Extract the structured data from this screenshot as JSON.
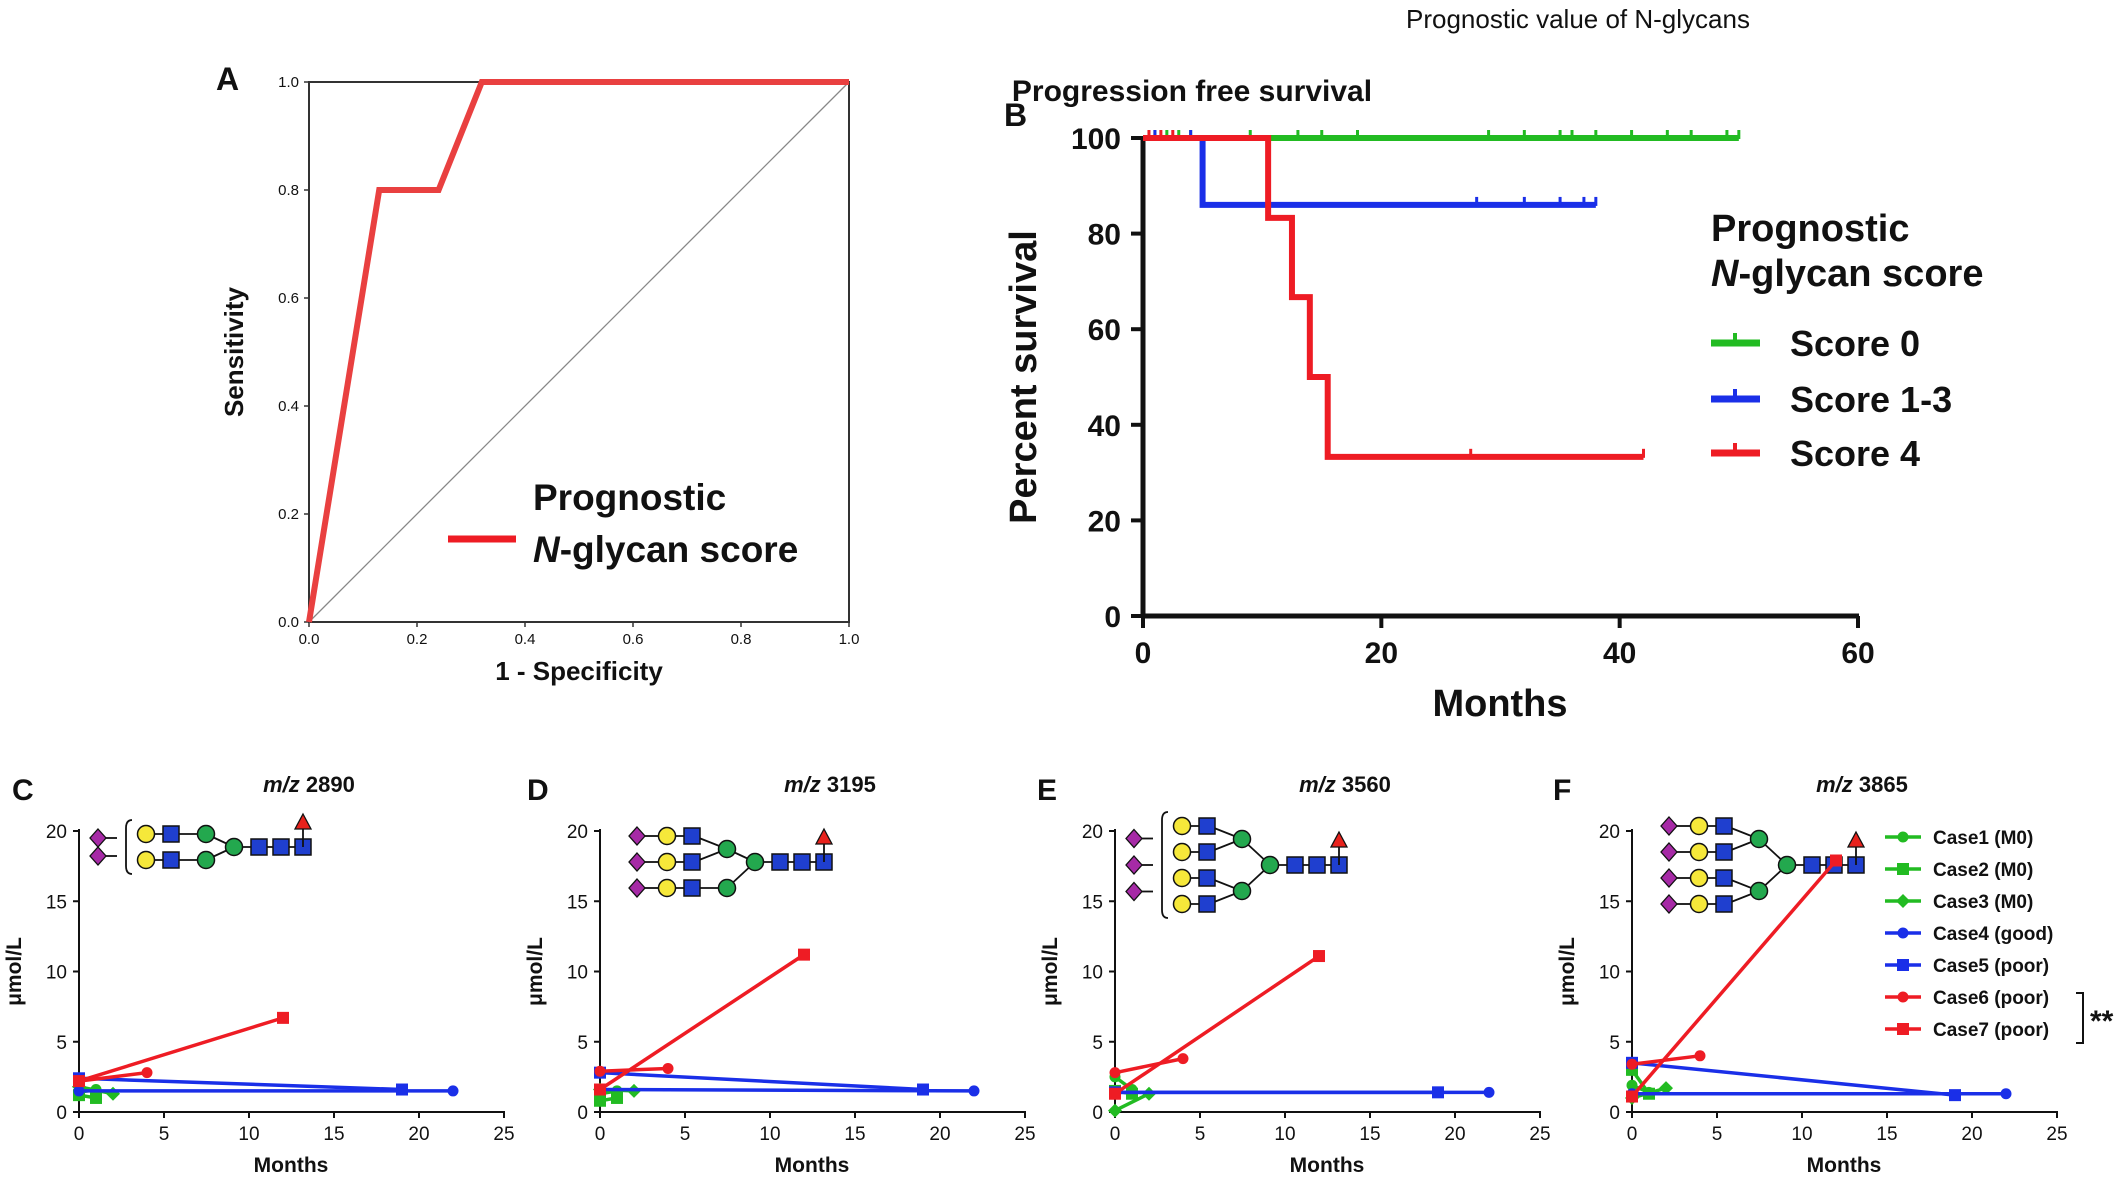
{
  "figure_title": "Prognostic value of N-glycans",
  "colors": {
    "red": "#ee1c24",
    "green": "#22bb22",
    "blue": "#1a2fe8",
    "roc_red": "#e94040",
    "glycan_yellow": "#f6e83a",
    "glycan_green": "#23a84e",
    "glycan_blue": "#1f3fcf",
    "glycan_purple": "#a62aa6",
    "fucose_red": "#e8221c"
  },
  "chart_data": [
    {
      "panel": "A",
      "type": "line",
      "title": "",
      "xlabel": "1 - Specificity",
      "ylabel": "Sensitivity",
      "xlim": [
        0,
        1
      ],
      "ylim": [
        0,
        1
      ],
      "xticks": [
        "0.0",
        "0.2",
        "0.4",
        "0.6",
        "0.8",
        "1.0"
      ],
      "yticks": [
        "0.0",
        "0.2",
        "0.4",
        "0.6",
        "0.8",
        "1.0"
      ],
      "legend": {
        "line1": "Prognostic",
        "line2_italic": "N",
        "line2_rest": "-glycan score"
      },
      "series": [
        {
          "name": "Prognostic N-glycan score",
          "x": [
            0,
            0.13,
            0.24,
            0.32,
            1.0
          ],
          "y": [
            0,
            0.8,
            0.8,
            1.0,
            1.0
          ]
        }
      ],
      "reference_line": {
        "x": [
          0,
          1
        ],
        "y": [
          0,
          1
        ]
      }
    },
    {
      "panel": "B",
      "type": "line",
      "title": "Progression free survival",
      "xlabel": "Months",
      "ylabel": "Percent survival",
      "xlim": [
        0,
        60
      ],
      "ylim": [
        0,
        100
      ],
      "xticks": [
        "0",
        "20",
        "40",
        "60"
      ],
      "yticks": [
        "0",
        "20",
        "40",
        "60",
        "80",
        "100"
      ],
      "legend_title_line1": "Prognostic",
      "legend_title_italic": "N",
      "legend_title_rest": "-glycan score",
      "series": [
        {
          "name": "Score 0",
          "color": "green",
          "steps": [
            [
              0,
              100
            ],
            [
              50,
              100
            ]
          ],
          "censor": [
            1,
            2,
            3,
            4,
            9,
            13,
            15,
            18,
            29,
            32,
            35,
            36,
            38,
            41,
            44,
            46,
            49,
            50
          ]
        },
        {
          "name": "Score 1-3",
          "color": "blue",
          "steps": [
            [
              0,
              100
            ],
            [
              5,
              100
            ],
            [
              5,
              86
            ],
            [
              38,
              86
            ]
          ],
          "censor": [
            1,
            4,
            28,
            32,
            35,
            37,
            38
          ]
        },
        {
          "name": "Score 4",
          "color": "red",
          "steps": [
            [
              0,
              100
            ],
            [
              10.5,
              100
            ],
            [
              10.5,
              83.3
            ],
            [
              12.5,
              83.3
            ],
            [
              12.5,
              66.7
            ],
            [
              14,
              66.7
            ],
            [
              14,
              50
            ],
            [
              15.5,
              50
            ],
            [
              15.5,
              33.3
            ],
            [
              42,
              33.3
            ]
          ],
          "censor": [
            0.5,
            1.5,
            2.5,
            27.5,
            42
          ]
        }
      ]
    }
  ],
  "small_panels": {
    "xlabel": "Months",
    "ylabel": "μmol/L",
    "xticks": [
      "0",
      "5",
      "10",
      "15",
      "20",
      "25"
    ],
    "yticks": [
      "0",
      "5",
      "10",
      "15",
      "20"
    ],
    "xlim": [
      0,
      25
    ],
    "ylim": [
      0,
      20
    ],
    "legend": [
      {
        "name": "Case1 (M0)",
        "color": "green",
        "marker": "circle"
      },
      {
        "name": "Case2 (M0)",
        "color": "green",
        "marker": "square"
      },
      {
        "name": "Case3 (M0)",
        "color": "green",
        "marker": "diamond"
      },
      {
        "name": "Case4 (good)",
        "color": "blue",
        "marker": "circle"
      },
      {
        "name": "Case5 (poor)",
        "color": "blue",
        "marker": "square"
      },
      {
        "name": "Case6 (poor)",
        "color": "red",
        "marker": "circle"
      },
      {
        "name": "Case7 (poor)",
        "color": "red",
        "marker": "square"
      }
    ],
    "significance": "**",
    "panels": [
      {
        "panel": "C",
        "title_italic": "m/z",
        "title_rest": " 2890",
        "series": [
          {
            "case": 1,
            "x": [
              0,
              1
            ],
            "y": [
              1.4,
              1.6
            ]
          },
          {
            "case": 2,
            "x": [
              0,
              1
            ],
            "y": [
              1.2,
              1.0
            ]
          },
          {
            "case": 3,
            "x": [
              0,
              2
            ],
            "y": [
              1.8,
              1.3
            ]
          },
          {
            "case": 4,
            "x": [
              0,
              22
            ],
            "y": [
              1.5,
              1.5
            ]
          },
          {
            "case": 5,
            "x": [
              0,
              19
            ],
            "y": [
              2.4,
              1.6
            ]
          },
          {
            "case": 6,
            "x": [
              0,
              4
            ],
            "y": [
              2.2,
              2.8
            ]
          },
          {
            "case": 7,
            "x": [
              0,
              12
            ],
            "y": [
              2.2,
              6.7
            ]
          }
        ]
      },
      {
        "panel": "D",
        "title_italic": "m/z",
        "title_rest": " 3195",
        "series": [
          {
            "case": 1,
            "x": [
              0,
              1
            ],
            "y": [
              1.3,
              1.5
            ]
          },
          {
            "case": 2,
            "x": [
              0,
              1
            ],
            "y": [
              0.8,
              1.0
            ]
          },
          {
            "case": 3,
            "x": [
              0,
              2
            ],
            "y": [
              1.6,
              1.5
            ]
          },
          {
            "case": 4,
            "x": [
              0,
              22
            ],
            "y": [
              1.6,
              1.5
            ]
          },
          {
            "case": 5,
            "x": [
              0,
              19
            ],
            "y": [
              2.8,
              1.6
            ]
          },
          {
            "case": 6,
            "x": [
              0,
              4
            ],
            "y": [
              2.9,
              3.1
            ]
          },
          {
            "case": 7,
            "x": [
              0,
              12
            ],
            "y": [
              1.6,
              11.2
            ]
          }
        ]
      },
      {
        "panel": "E",
        "title_italic": "m/z",
        "title_rest": " 3560",
        "series": [
          {
            "case": 1,
            "x": [
              0,
              1
            ],
            "y": [
              2.5,
              1.6
            ]
          },
          {
            "case": 2,
            "x": [
              0,
              1
            ],
            "y": [
              1.5,
              1.3
            ]
          },
          {
            "case": 3,
            "x": [
              0,
              2
            ],
            "y": [
              0.1,
              1.3
            ]
          },
          {
            "case": 4,
            "x": [
              0,
              22
            ],
            "y": [
              1.4,
              1.4
            ]
          },
          {
            "case": 5,
            "x": [
              0,
              19
            ],
            "y": [
              1.4,
              1.4
            ]
          },
          {
            "case": 6,
            "x": [
              0,
              4
            ],
            "y": [
              2.8,
              3.8
            ]
          },
          {
            "case": 7,
            "x": [
              0,
              12
            ],
            "y": [
              1.3,
              11.1
            ]
          }
        ]
      },
      {
        "panel": "F",
        "title_italic": "m/z",
        "title_rest": " 3865",
        "series": [
          {
            "case": 1,
            "x": [
              0,
              1
            ],
            "y": [
              1.9,
              1.4
            ]
          },
          {
            "case": 2,
            "x": [
              0,
              1
            ],
            "y": [
              3.0,
              1.3
            ]
          },
          {
            "case": 3,
            "x": [
              0,
              2
            ],
            "y": [
              1.0,
              1.7
            ]
          },
          {
            "case": 4,
            "x": [
              0,
              22
            ],
            "y": [
              1.3,
              1.3
            ]
          },
          {
            "case": 5,
            "x": [
              0,
              19
            ],
            "y": [
              3.5,
              1.2
            ]
          },
          {
            "case": 6,
            "x": [
              0,
              4
            ],
            "y": [
              3.4,
              4.0
            ]
          },
          {
            "case": 7,
            "x": [
              0,
              12
            ],
            "y": [
              1.1,
              17.9
            ]
          }
        ]
      }
    ]
  }
}
